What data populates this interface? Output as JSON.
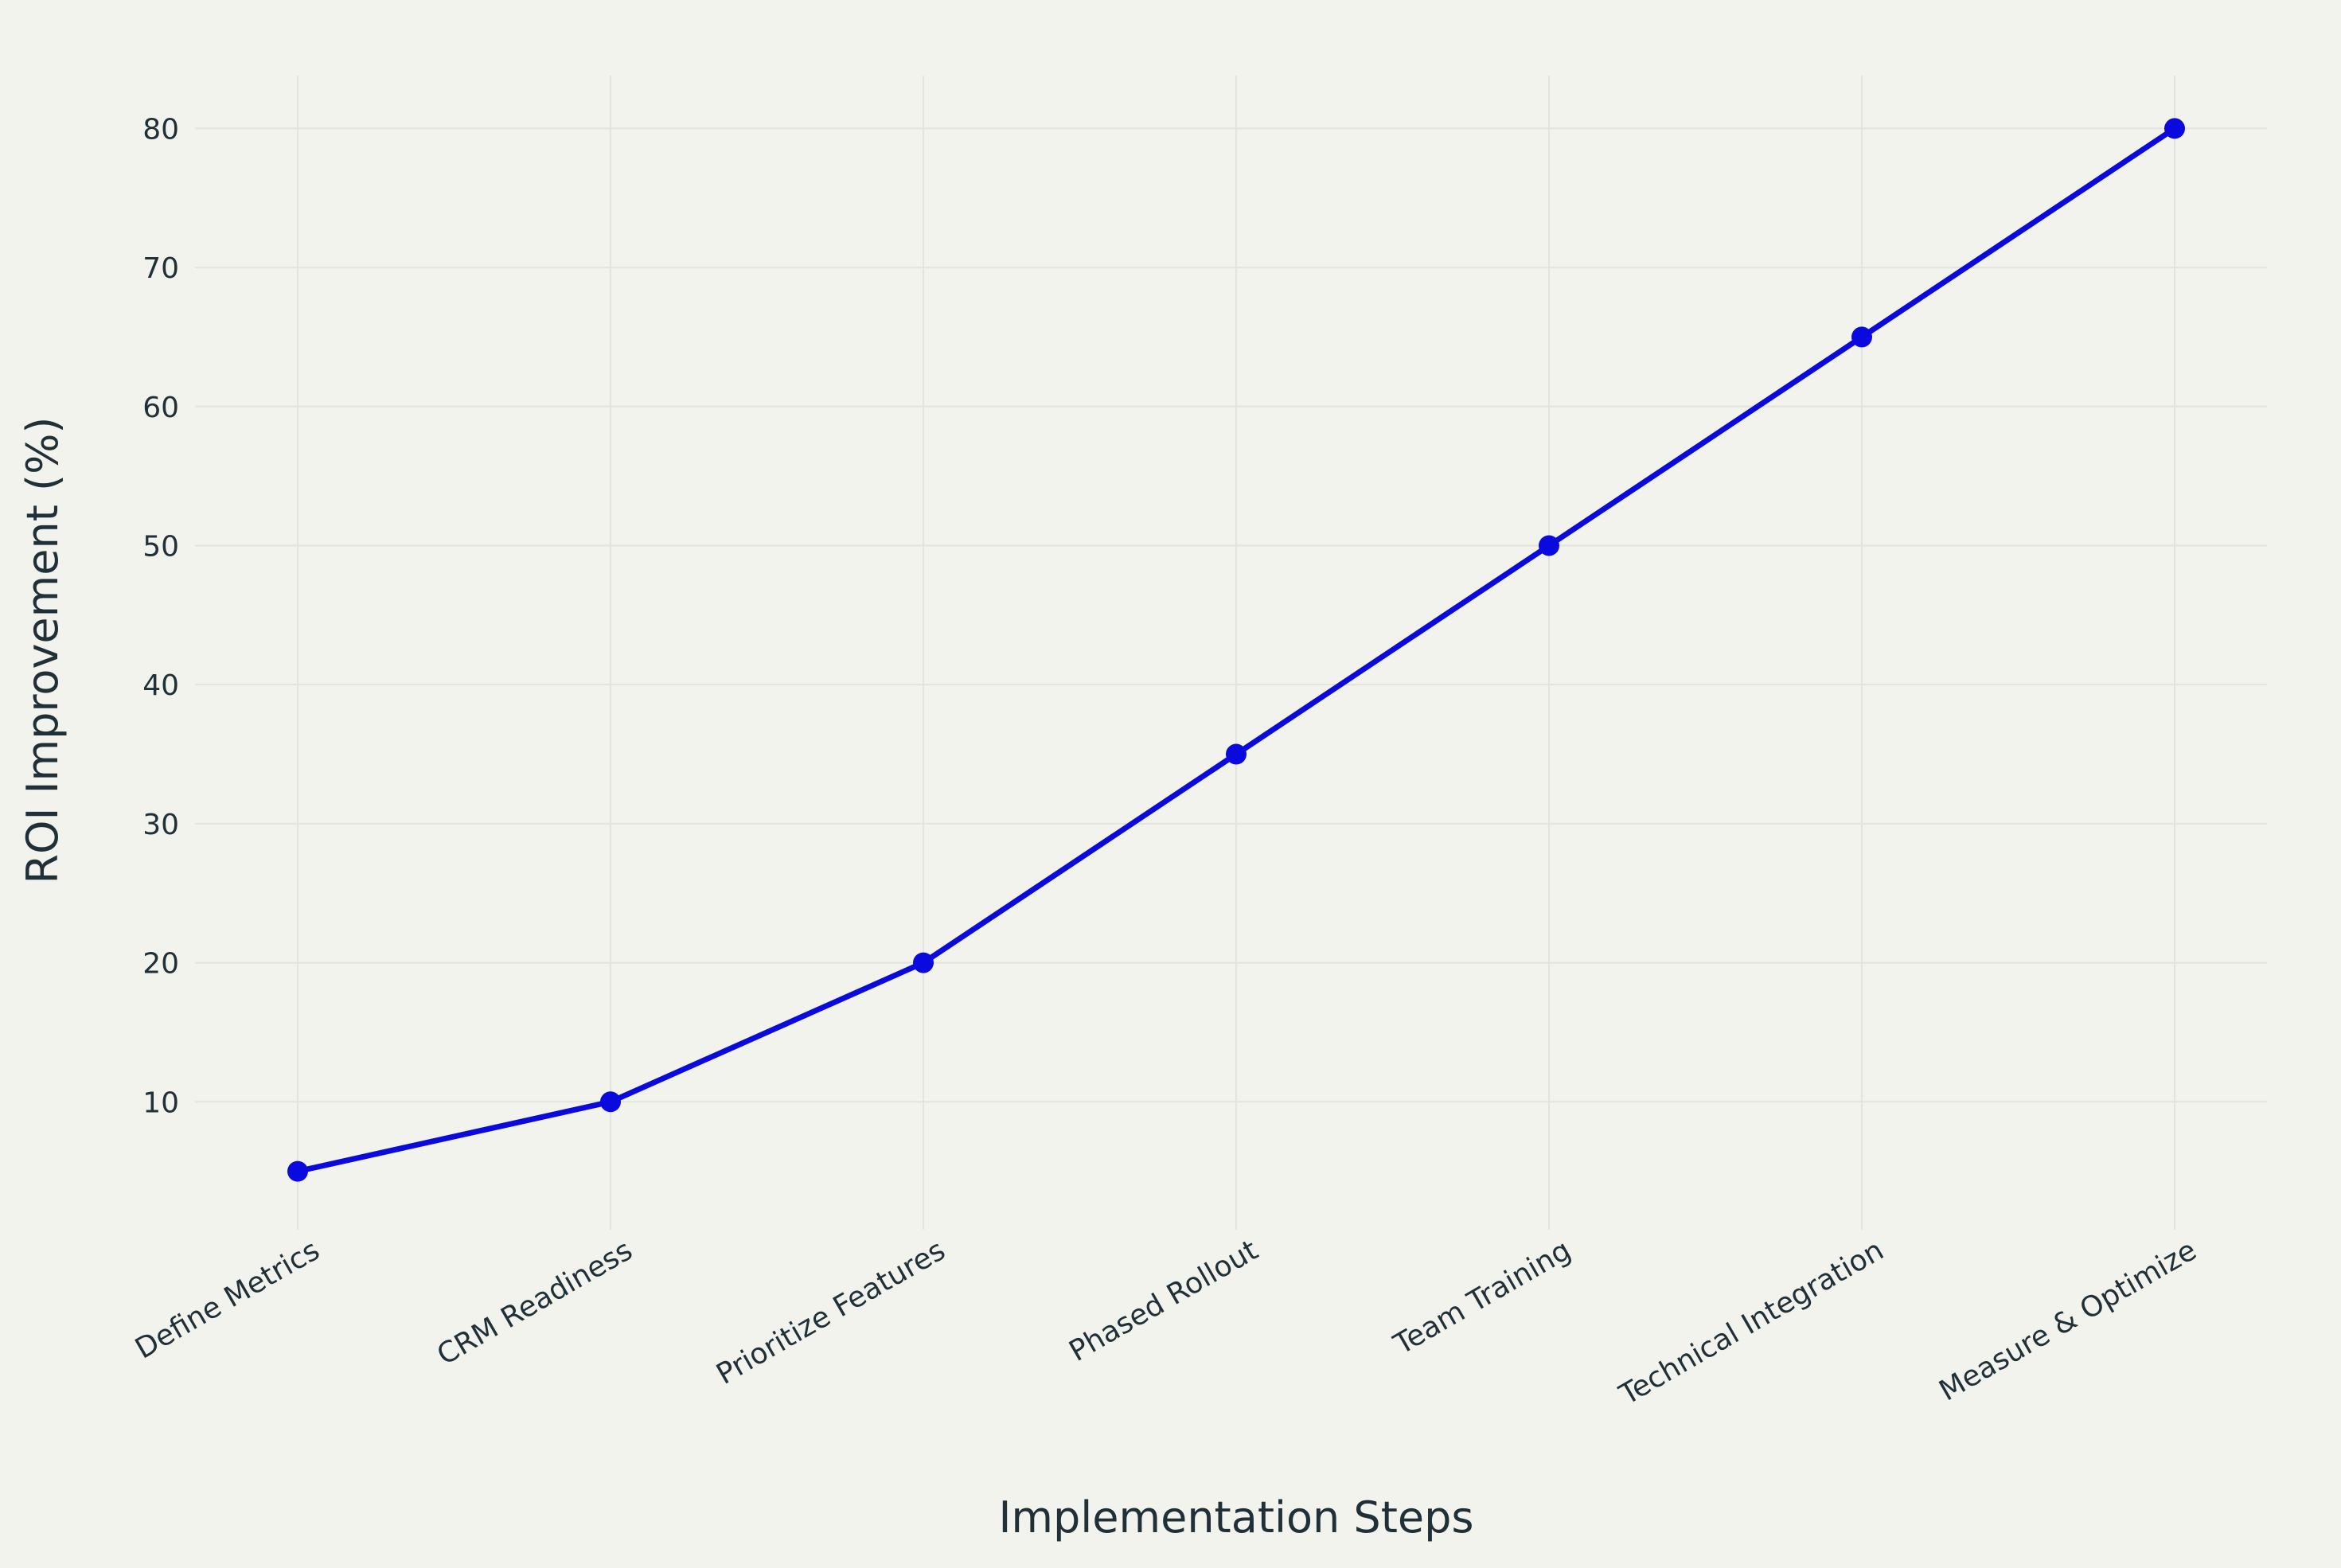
{
  "chart_data": {
    "type": "line",
    "title": "",
    "xlabel": "Implementation Steps",
    "ylabel": "ROI Improvement (%)",
    "categories": [
      "Define Metrics",
      "CRM Readiness",
      "Prioritize Features",
      "Phased Rollout",
      "Team Training",
      "Technical Integration",
      "Measure & Optimize"
    ],
    "series": [
      {
        "values": [
          5,
          10,
          20,
          35,
          50,
          65,
          80
        ],
        "color": "#0a0adf"
      }
    ],
    "yticks": [
      10,
      20,
      30,
      40,
      50,
      60,
      70,
      80
    ],
    "ylim": [
      0.8,
      83.8
    ],
    "grid": true,
    "legend": "none",
    "background": "#f3f3ee",
    "grid_color": "#e3e3df",
    "text_color": "#1f3038"
  }
}
